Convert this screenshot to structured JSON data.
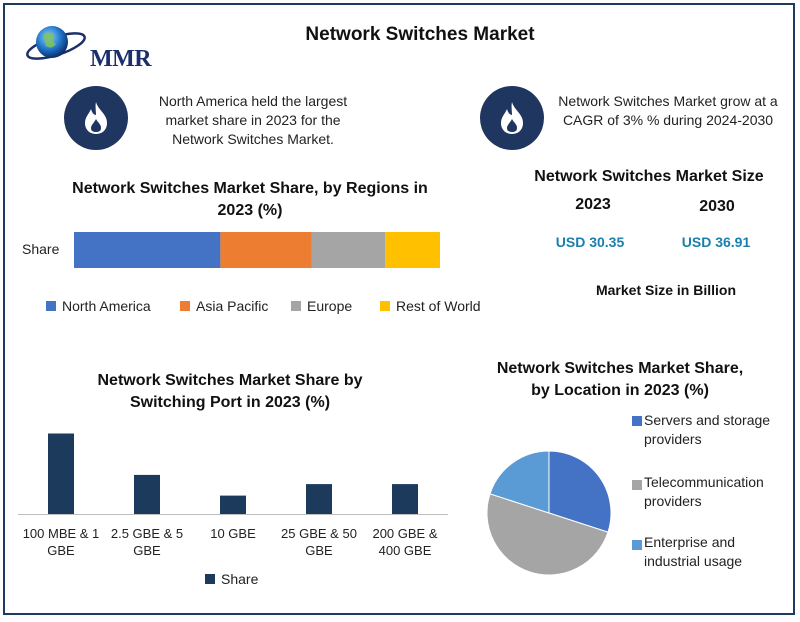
{
  "title": "Network Switches Market",
  "logo": {
    "text": "MMR"
  },
  "info_left": "North America held the largest market share in 2023 for the Network Switches Market.",
  "info_right": "Network Switches Market grow at a CAGR of 3% % during 2024-2030",
  "icons": {
    "left": "flame-icon",
    "right": "flame-icon",
    "logo": "globe-icon"
  },
  "market_size": {
    "title": "Network Switches Market Size",
    "years": [
      "2023",
      "2030"
    ],
    "values": [
      "USD 30.35",
      "USD 36.91"
    ],
    "unit_label": "Market Size in Billion"
  },
  "colors": {
    "navy": "#1f3661",
    "bar": "#1b3a5c",
    "value": "#1a7fae",
    "north_america": "#4472c4",
    "asia_pacific": "#ed7d31",
    "europe": "#a5a5a5",
    "rest_of_world": "#ffc000",
    "pie_servers": "#4472c4",
    "pie_telecom": "#a5a5a5",
    "pie_enterprise": "#5b9bd5"
  },
  "chart_data": [
    {
      "type": "bar",
      "orientation": "horizontal-stacked",
      "title": "Network Switches Market Share, by Regions in 2023 (%)",
      "categories": [
        "Share"
      ],
      "series": [
        {
          "name": "North America",
          "values": [
            40
          ]
        },
        {
          "name": "Asia Pacific",
          "values": [
            25
          ]
        },
        {
          "name": "Europe",
          "values": [
            20
          ]
        },
        {
          "name": "Rest of World",
          "values": [
            15
          ]
        }
      ],
      "legend": "bottom"
    },
    {
      "type": "bar",
      "title": "Network Switches Market Share by Switching Port  in 2023 (%)",
      "categories": [
        "100 MBE & 1 GBE",
        "2.5 GBE & 5 GBE",
        "10 GBE",
        "25 GBE & 50 GBE",
        "200 GBE & 400 GBE"
      ],
      "series": [
        {
          "name": "Share",
          "values": [
            35,
            17,
            8,
            13,
            13
          ]
        }
      ],
      "ylim": [
        0,
        40
      ],
      "legend": "bottom"
    },
    {
      "type": "pie",
      "title": "Network Switches Market Share, by Location in 2023 (%)",
      "labels": [
        "Servers and storage providers",
        "Telecommunication providers",
        "Enterprise and industrial usage"
      ],
      "values": [
        30,
        50,
        20
      ],
      "legend": "right"
    }
  ]
}
